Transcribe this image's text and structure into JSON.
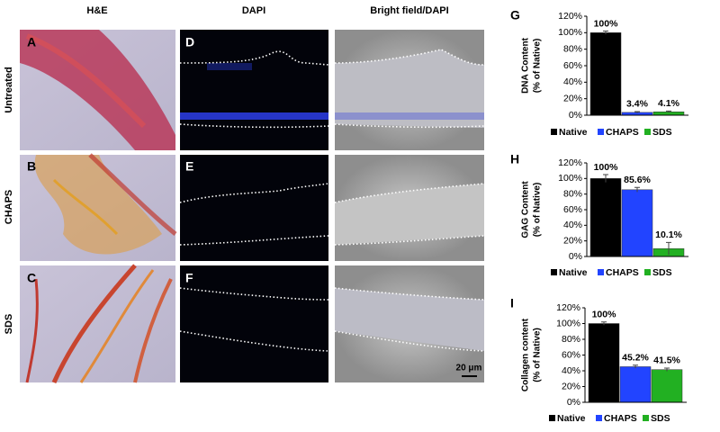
{
  "figure": {
    "column_titles": [
      "H&E",
      "DAPI",
      "Bright field/DAPI"
    ],
    "row_labels": [
      "Untreated",
      "CHAPS",
      "SDS"
    ],
    "panel_letters": [
      "A",
      "B",
      "C",
      "D",
      "E",
      "F"
    ],
    "scale_bar": "20 μm"
  },
  "chart_data": [
    {
      "type": "bar",
      "panel": "G",
      "ylabel": [
        "DNA Content",
        "(% of Native)"
      ],
      "categories": [
        "Native",
        "CHAPS",
        "SDS"
      ],
      "colors": [
        "#000000",
        "#2244ff",
        "#22b022"
      ],
      "values": [
        100,
        3.4,
        4.1
      ],
      "errors": [
        2,
        1,
        1
      ],
      "value_labels": [
        "100%",
        "3.4%",
        "4.1%"
      ],
      "ylim": [
        0,
        120
      ],
      "yticks": [
        {
          "value": 0,
          "label": "0%"
        },
        {
          "value": 20,
          "label": "20%"
        },
        {
          "value": 40,
          "label": "40%"
        },
        {
          "value": 60,
          "label": "60%"
        },
        {
          "value": 80,
          "label": "80%"
        },
        {
          "value": 100,
          "label": "100%"
        },
        {
          "value": 120,
          "label": "120%"
        }
      ]
    },
    {
      "type": "bar",
      "panel": "H",
      "ylabel": [
        "GAG Content",
        "(% of Native)"
      ],
      "categories": [
        "Native",
        "CHAPS",
        "SDS"
      ],
      "colors": [
        "#000000",
        "#2244ff",
        "#22b022"
      ],
      "values": [
        100,
        85.6,
        10.1
      ],
      "errors": [
        5,
        3,
        8
      ],
      "value_labels": [
        "100%",
        "85.6%",
        "10.1%"
      ],
      "ylim": [
        0,
        120
      ],
      "yticks": [
        {
          "value": 0,
          "label": "0%"
        },
        {
          "value": 20,
          "label": "20%"
        },
        {
          "value": 40,
          "label": "40%"
        },
        {
          "value": 60,
          "label": "60%"
        },
        {
          "value": 80,
          "label": "80%"
        },
        {
          "value": 100,
          "label": "100%"
        },
        {
          "value": 120,
          "label": "120%"
        }
      ]
    },
    {
      "type": "bar",
      "panel": "I",
      "ylabel": [
        "Collagen content",
        "(% of Native)"
      ],
      "categories": [
        "Native",
        "CHAPS",
        "SDS"
      ],
      "colors": [
        "#000000",
        "#2244ff",
        "#22b022"
      ],
      "values": [
        100,
        45.2,
        41.5
      ],
      "errors": [
        2,
        2,
        2
      ],
      "value_labels": [
        "100%",
        "45.2%",
        "41.5%"
      ],
      "ylim": [
        0,
        120
      ],
      "yticks": [
        {
          "value": 0,
          "label": "0%"
        },
        {
          "value": 20,
          "label": "20%"
        },
        {
          "value": 40,
          "label": "40%"
        },
        {
          "value": 60,
          "label": "60%"
        },
        {
          "value": 80,
          "label": "80%"
        },
        {
          "value": 100,
          "label": "100%"
        },
        {
          "value": 120,
          "label": "120%"
        }
      ]
    }
  ]
}
